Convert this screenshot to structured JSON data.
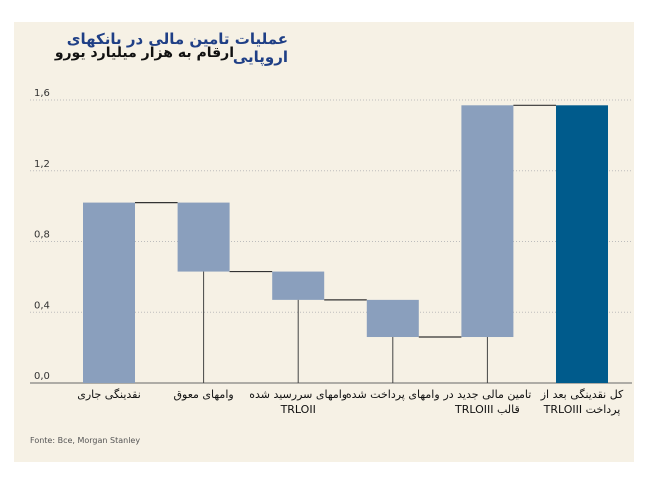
{
  "title": "عملیات تامین مالی در بانکهای اروپایی",
  "subtitle": "ارقام به هزار میلیارد یورو",
  "source": "Fonte: Bce, Morgan Stanley",
  "colors": {
    "accent": "#1f3f86",
    "bar": "#8a9fbd",
    "bar_final": "#005b8c",
    "panel": "#f6f1e5"
  },
  "chart_data": {
    "type": "bar",
    "subtype": "waterfall",
    "title": "عملیات تامین مالی در بانکهای اروپایی",
    "ylabel": "ارقام به هزار میلیارد یورو",
    "ylim": [
      0,
      1.6
    ],
    "yticks": [
      "0,0",
      "0,4",
      "0,8",
      "1,2",
      "1,6"
    ],
    "grid": true,
    "categories": [
      "نقدینگی جاری",
      "وامهای معوق",
      "وامهای سررسید شده TRLOII",
      "وامهای پرداخت شده",
      "تامین مالی جدید در قالب TRLOIII",
      "کل نقدینگی بعد از پرداخت TRLOIII"
    ],
    "bars": [
      {
        "start": 0.0,
        "end": 1.02
      },
      {
        "start": 1.02,
        "end": 0.63
      },
      {
        "start": 0.63,
        "end": 0.47
      },
      {
        "start": 0.47,
        "end": 0.26
      },
      {
        "start": 0.26,
        "end": 1.57
      },
      {
        "start": 0.0,
        "end": 1.57
      }
    ]
  }
}
